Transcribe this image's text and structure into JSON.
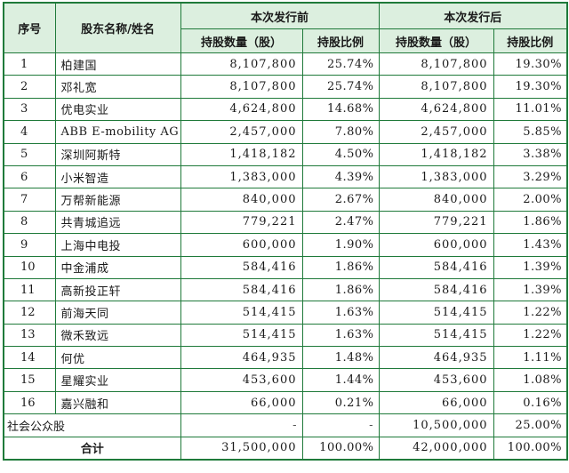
{
  "header": {
    "col_index": "序号",
    "col_name": "股东名称/姓名",
    "group_before": "本次发行前",
    "group_after": "本次发行后",
    "shares_label": "持股数量（股）",
    "ratio_label": "持股比例"
  },
  "rows": [
    {
      "idx": "1",
      "name": "柏建国",
      "before_shares": "8,107,800",
      "before_ratio": "25.74%",
      "after_shares": "8,107,800",
      "after_ratio": "19.30%"
    },
    {
      "idx": "2",
      "name": "邓礼宽",
      "before_shares": "8,107,800",
      "before_ratio": "25.74%",
      "after_shares": "8,107,800",
      "after_ratio": "19.30%"
    },
    {
      "idx": "3",
      "name": "优电实业",
      "before_shares": "4,624,800",
      "before_ratio": "14.68%",
      "after_shares": "4,624,800",
      "after_ratio": "11.01%"
    },
    {
      "idx": "4",
      "name": "ABB E-mobility AG",
      "before_shares": "2,457,000",
      "before_ratio": "7.80%",
      "after_shares": "2,457,000",
      "after_ratio": "5.85%"
    },
    {
      "idx": "5",
      "name": "深圳阿斯特",
      "before_shares": "1,418,182",
      "before_ratio": "4.50%",
      "after_shares": "1,418,182",
      "after_ratio": "3.38%"
    },
    {
      "idx": "6",
      "name": "小米智造",
      "before_shares": "1,383,000",
      "before_ratio": "4.39%",
      "after_shares": "1,383,000",
      "after_ratio": "3.29%"
    },
    {
      "idx": "7",
      "name": "万帮新能源",
      "before_shares": "840,000",
      "before_ratio": "2.67%",
      "after_shares": "840,000",
      "after_ratio": "2.00%"
    },
    {
      "idx": "8",
      "name": "共青城追远",
      "before_shares": "779,221",
      "before_ratio": "2.47%",
      "after_shares": "779,221",
      "after_ratio": "1.86%"
    },
    {
      "idx": "9",
      "name": "上海中电投",
      "before_shares": "600,000",
      "before_ratio": "1.90%",
      "after_shares": "600,000",
      "after_ratio": "1.43%"
    },
    {
      "idx": "10",
      "name": "中金浦成",
      "before_shares": "584,416",
      "before_ratio": "1.86%",
      "after_shares": "584,416",
      "after_ratio": "1.39%"
    },
    {
      "idx": "11",
      "name": "高新投正轩",
      "before_shares": "584,416",
      "before_ratio": "1.86%",
      "after_shares": "584,416",
      "after_ratio": "1.39%"
    },
    {
      "idx": "12",
      "name": "前海天同",
      "before_shares": "514,415",
      "before_ratio": "1.63%",
      "after_shares": "514,415",
      "after_ratio": "1.22%"
    },
    {
      "idx": "13",
      "name": "微禾致远",
      "before_shares": "514,415",
      "before_ratio": "1.63%",
      "after_shares": "514,415",
      "after_ratio": "1.22%"
    },
    {
      "idx": "14",
      "name": "何优",
      "before_shares": "464,935",
      "before_ratio": "1.48%",
      "after_shares": "464,935",
      "after_ratio": "1.11%"
    },
    {
      "idx": "15",
      "name": "星耀实业",
      "before_shares": "453,600",
      "before_ratio": "1.44%",
      "after_shares": "453,600",
      "after_ratio": "1.08%"
    },
    {
      "idx": "16",
      "name": "嘉兴融和",
      "before_shares": "66,000",
      "before_ratio": "0.21%",
      "after_shares": "66,000",
      "after_ratio": "0.16%"
    }
  ],
  "public_row": {
    "label": "社会公众股",
    "before_shares": "-",
    "before_ratio": "-",
    "after_shares": "10,500,000",
    "after_ratio": "25.00%"
  },
  "total_row": {
    "label": "合计",
    "before_shares": "31,500,000",
    "before_ratio": "100.00%",
    "after_shares": "42,000,000",
    "after_ratio": "100.00%"
  }
}
